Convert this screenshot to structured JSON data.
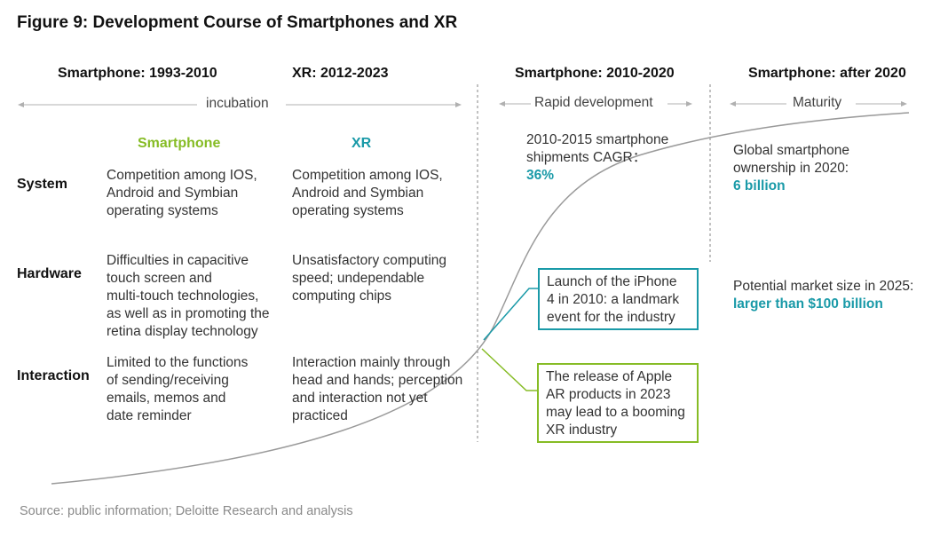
{
  "title": "Figure 9: Development Course of Smartphones and XR",
  "columns": {
    "c1": "Smartphone: 1993-2010",
    "c2": "XR: 2012-2023",
    "c3": "Smartphone: 2010-2020",
    "c4": "Smartphone: after 2020"
  },
  "phases": {
    "incubation": "incubation",
    "rapid": "Rapid development",
    "maturity": "Maturity"
  },
  "subheads": {
    "smartphone": "Smartphone",
    "xr": "XR"
  },
  "rows": {
    "system": "System",
    "hardware": "Hardware",
    "interaction": "Interaction"
  },
  "cells": {
    "system_smartphone": [
      "Competition among IOS,",
      "Android and Symbian",
      "operating systems"
    ],
    "system_xr": [
      "Competition among IOS,",
      "Android and Symbian",
      "operating systems"
    ],
    "system_2010_2020": [
      "2010-2015 smartphone",
      "shipments CAGR："
    ],
    "system_2010_2020_value": "36%",
    "system_after_2020": [
      "Global smartphone",
      "ownership in 2020:"
    ],
    "system_after_2020_value": "6 billion",
    "hardware_smartphone": [
      "Difficulties in capacitive",
      "touch screen and",
      "multi-touch technologies,",
      "as well as in promoting  the",
      "retina display technology"
    ],
    "hardware_xr": [
      "Unsatisfactory computing",
      "speed; undependable",
      "computing chips"
    ],
    "hardware_after_2020": [
      "Potential market size in 2025:"
    ],
    "hardware_after_2020_value": "larger than $100 billion",
    "interaction_smartphone": [
      "Limited to the functions",
      "of sending/receiving",
      "emails, memos and",
      "date reminder"
    ],
    "interaction_xr": [
      "Interaction mainly through",
      "head and hands; perception",
      "and interaction not yet",
      "practiced"
    ]
  },
  "callouts": {
    "iphone": [
      "Launch of the iPhone",
      "4 in 2010: a landmark",
      "event for the industry"
    ],
    "apple_ar": [
      "The release of Apple",
      "AR products in 2023",
      "may lead to a booming",
      "XR industry"
    ]
  },
  "colors": {
    "smartphone_green": "#86bc25",
    "xr_teal": "#1a9aa8",
    "curve_gray": "#9a9a9a",
    "divider_gray": "#9a9a9a"
  },
  "source": "Source: public information; Deloitte Research and analysis"
}
